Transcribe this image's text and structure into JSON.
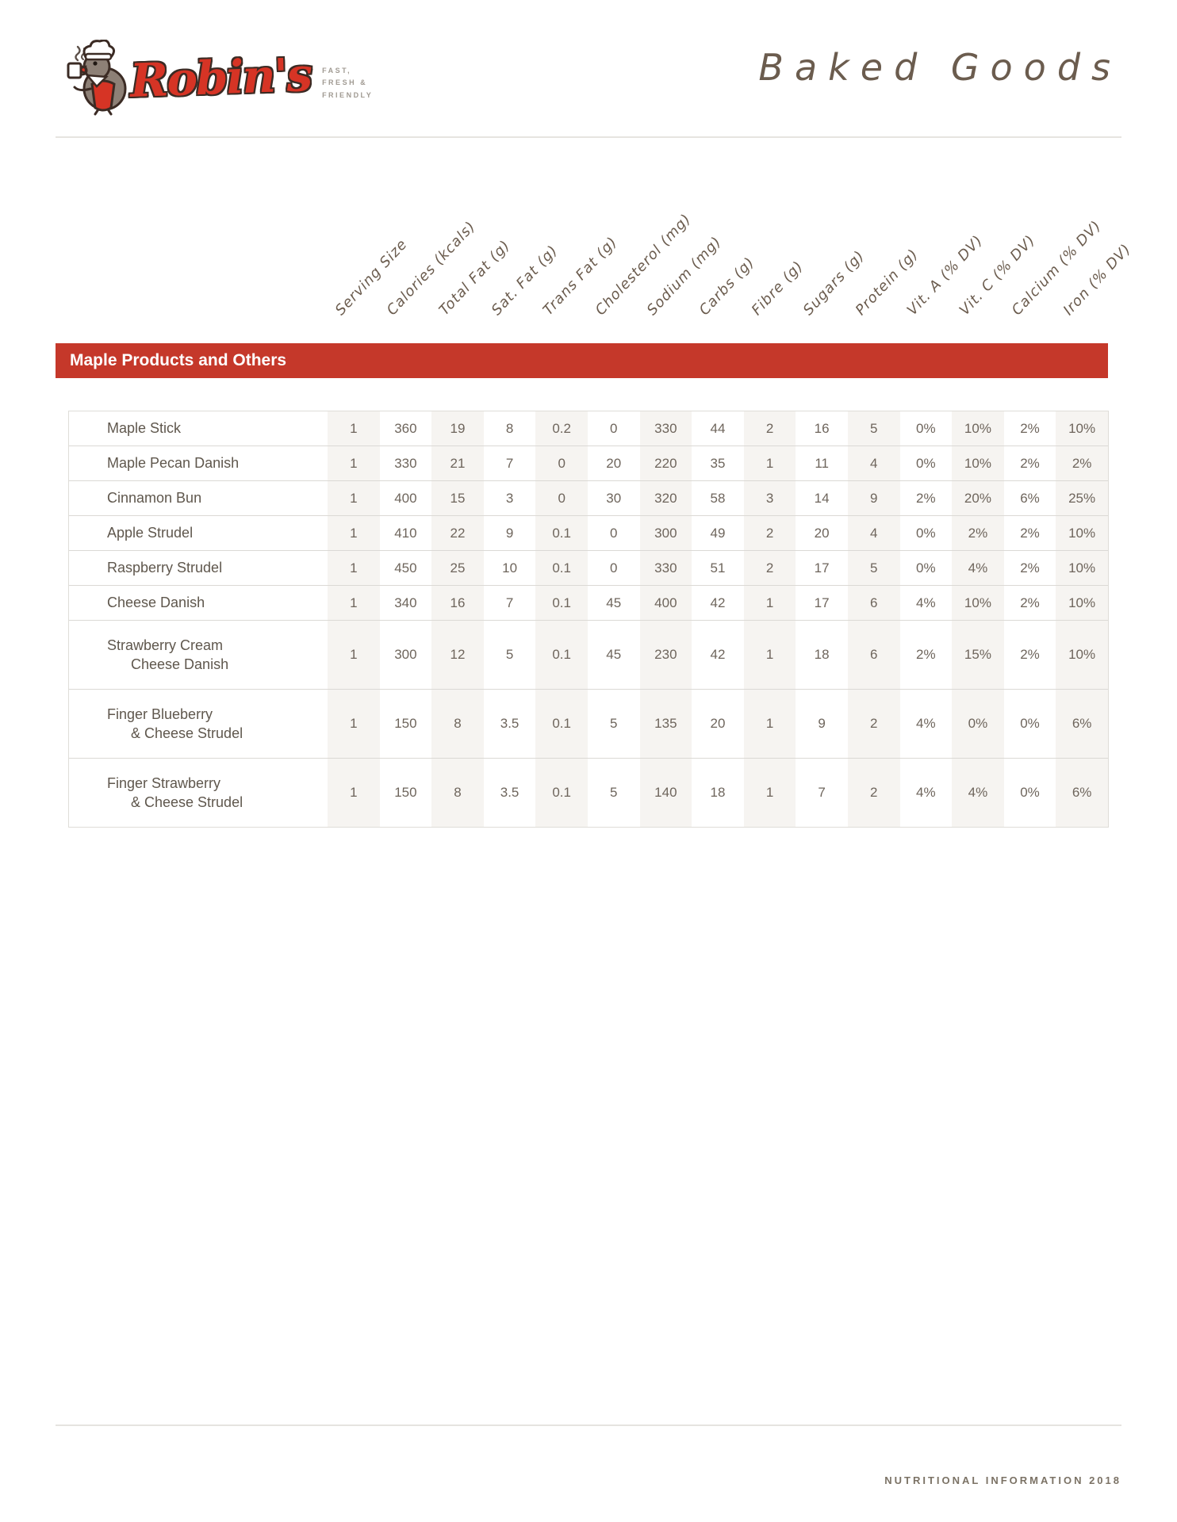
{
  "logo": {
    "brand": "Robin's",
    "tagline_lines": [
      "FAST,",
      "FRESH &",
      "FRIENDLY"
    ]
  },
  "title": "Baked Goods",
  "section_header": "Maple Products and Others",
  "footer_text": "NUTRITIONAL INFORMATION 2018",
  "colors": {
    "accent_red": "#c5382a",
    "logo_red": "#d63425",
    "ink_brown": "#6b5c4e",
    "stripe": "#f6f4f1"
  },
  "table": {
    "columns": [
      "Serving Size",
      "Calories (kcals)",
      "Total Fat (g)",
      "Sat. Fat (g)",
      "Trans Fat (g)",
      "Cholesterol (mg)",
      "Sodium (mg)",
      "Carbs (g)",
      "Fibre (g)",
      "Sugars (g)",
      "Protein (g)",
      "Vit. A (% DV)",
      "Vit. C (% DV)",
      "Calcium (% DV)",
      "Iron (% DV)"
    ],
    "rows": [
      {
        "name_lines": [
          "Maple Stick"
        ],
        "values": [
          "1",
          "360",
          "19",
          "8",
          "0.2",
          "0",
          "330",
          "44",
          "2",
          "16",
          "5",
          "0%",
          "10%",
          "2%",
          "10%"
        ]
      },
      {
        "name_lines": [
          "Maple Pecan Danish"
        ],
        "values": [
          "1",
          "330",
          "21",
          "7",
          "0",
          "20",
          "220",
          "35",
          "1",
          "11",
          "4",
          "0%",
          "10%",
          "2%",
          "2%"
        ]
      },
      {
        "name_lines": [
          "Cinnamon Bun"
        ],
        "values": [
          "1",
          "400",
          "15",
          "3",
          "0",
          "30",
          "320",
          "58",
          "3",
          "14",
          "9",
          "2%",
          "20%",
          "6%",
          "25%"
        ]
      },
      {
        "name_lines": [
          "Apple Strudel"
        ],
        "values": [
          "1",
          "410",
          "22",
          "9",
          "0.1",
          "0",
          "300",
          "49",
          "2",
          "20",
          "4",
          "0%",
          "2%",
          "2%",
          "10%"
        ]
      },
      {
        "name_lines": [
          "Raspberry Strudel"
        ],
        "values": [
          "1",
          "450",
          "25",
          "10",
          "0.1",
          "0",
          "330",
          "51",
          "2",
          "17",
          "5",
          "0%",
          "4%",
          "2%",
          "10%"
        ]
      },
      {
        "name_lines": [
          "Cheese Danish"
        ],
        "values": [
          "1",
          "340",
          "16",
          "7",
          "0.1",
          "45",
          "400",
          "42",
          "1",
          "17",
          "6",
          "4%",
          "10%",
          "2%",
          "10%"
        ]
      },
      {
        "name_lines": [
          "Strawberry Cream",
          "Cheese Danish"
        ],
        "values": [
          "1",
          "300",
          "12",
          "5",
          "0.1",
          "45",
          "230",
          "42",
          "1",
          "18",
          "6",
          "2%",
          "15%",
          "2%",
          "10%"
        ]
      },
      {
        "name_lines": [
          "Finger Blueberry",
          "& Cheese Strudel"
        ],
        "values": [
          "1",
          "150",
          "8",
          "3.5",
          "0.1",
          "5",
          "135",
          "20",
          "1",
          "9",
          "2",
          "4%",
          "0%",
          "0%",
          "6%"
        ]
      },
      {
        "name_lines": [
          "Finger Strawberry",
          "& Cheese Strudel"
        ],
        "values": [
          "1",
          "150",
          "8",
          "3.5",
          "0.1",
          "5",
          "140",
          "18",
          "1",
          "7",
          "2",
          "4%",
          "4%",
          "0%",
          "6%"
        ]
      }
    ]
  }
}
